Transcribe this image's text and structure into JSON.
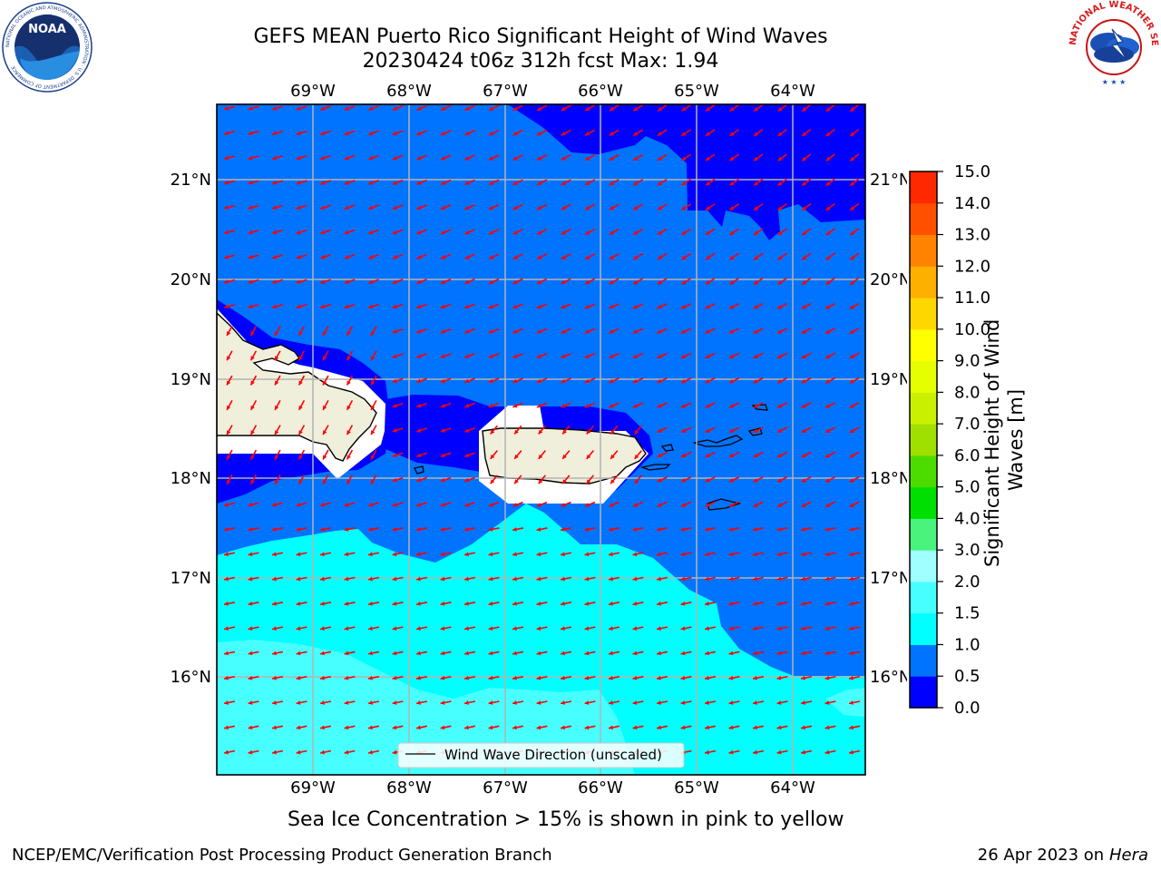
{
  "header": {
    "title_line1": "GEFS MEAN Puerto Rico Significant Height of Wind Waves",
    "title_line2": "20230424 t06z 312h fcst   Max: 1.94",
    "left_logo_text": "NOAA",
    "left_logo_ring_text": "NATIONAL OCEANIC AND ATMOSPHERIC ADMINISTRATION · U.S. DEPARTMENT OF COMMERCE",
    "right_logo_ring_text": "NATIONAL WEATHER SERVICE"
  },
  "map": {
    "lon_labels": [
      "69°W",
      "68°W",
      "67°W",
      "66°W",
      "65°W",
      "64°W"
    ],
    "lat_labels": [
      "21°N",
      "20°N",
      "19°N",
      "18°N",
      "17°N",
      "16°N"
    ],
    "legend_label": "Wind Wave Direction (unscaled)",
    "colors": {
      "band_0_0_5": "#0000ff",
      "band_0_5_1_0": "#0073ff",
      "band_1_0_1_5": "#00ffff",
      "band_1_5_2_0": "#48ffff",
      "land": "#efefdc",
      "arrow": "#ff0000",
      "grid": "#b4b4b4"
    }
  },
  "colorbar": {
    "label": "Significant Height of Wind Waves [m]",
    "ticks": [
      "0.0",
      "0.5",
      "1.0",
      "1.5",
      "2.0",
      "3.0",
      "4.0",
      "5.0",
      "6.0",
      "7.0",
      "8.0",
      "9.0",
      "10.0",
      "11.0",
      "12.0",
      "13.0",
      "14.0",
      "15.0"
    ],
    "colors": [
      "#0000ff",
      "#0073ff",
      "#00ffff",
      "#48ffff",
      "#a0ffff",
      "#48f47c",
      "#00e000",
      "#4cdc00",
      "#a0e000",
      "#c8f000",
      "#e6ff00",
      "#ffff00",
      "#ffd700",
      "#ffaf00",
      "#ff8200",
      "#ff5000",
      "#ff2800",
      "#ff0000"
    ]
  },
  "caption": "Sea Ice Concentration > 15% is shown in pink to yellow",
  "footer": {
    "left": "NCEP/EMC/Verification Post Processing Product Generation Branch",
    "date": "26 Apr 2023 on",
    "host": "Hera"
  }
}
